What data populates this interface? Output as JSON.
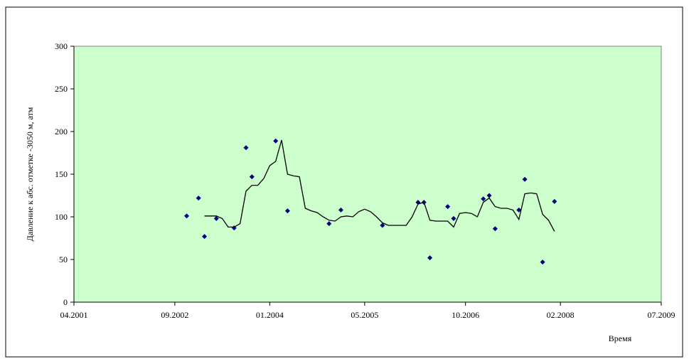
{
  "chart_data": {
    "type": "scatter",
    "ylabel": "Давление к абс. отметке -3050 м, атм",
    "xlabel": "Время",
    "xlim": [
      "2001-04",
      "2009-07"
    ],
    "xticks": [
      {
        "value": "2001-04",
        "label": "04.2001"
      },
      {
        "value": "2002-09",
        "label": "09.2002"
      },
      {
        "value": "2004-01",
        "label": "01.2004"
      },
      {
        "value": "2005-05",
        "label": "05.2005"
      },
      {
        "value": "2006-10",
        "label": "10.2006"
      },
      {
        "value": "2008-02",
        "label": "02.2008"
      },
      {
        "value": "2009-07",
        "label": "07.2009"
      }
    ],
    "ylim": [
      0,
      300
    ],
    "yticks": [
      0,
      50,
      100,
      150,
      200,
      250,
      300
    ],
    "background": "#ccffcc",
    "series": [
      {
        "type": "scatter",
        "color": "#000080",
        "x": [
          "2002-11",
          "2003-01",
          "2003-02",
          "2003-04",
          "2003-07",
          "2003-09",
          "2003-10",
          "2004-02",
          "2004-04",
          "2004-11",
          "2005-01",
          "2005-08",
          "2006-02",
          "2006-03",
          "2006-04",
          "2006-07",
          "2006-08",
          "2007-01",
          "2007-02",
          "2007-03",
          "2007-07",
          "2007-08",
          "2007-11",
          "2008-01"
        ],
        "values": [
          101,
          122,
          77,
          98,
          87,
          181,
          147,
          189,
          107,
          92,
          108,
          90,
          117,
          117,
          52,
          112,
          98,
          121,
          125,
          86,
          108,
          144,
          47,
          118
        ]
      },
      {
        "type": "line",
        "color": "#000000",
        "x": [
          "2003-02",
          "2003-04",
          "2003-05",
          "2003-06",
          "2003-07",
          "2003-08",
          "2003-09",
          "2003-10",
          "2003-11",
          "2003-12",
          "2004-01",
          "2004-02",
          "2004-03",
          "2004-04",
          "2004-05",
          "2004-06",
          "2004-07",
          "2004-08",
          "2004-09",
          "2004-10",
          "2004-11",
          "2004-12",
          "2005-01",
          "2005-02",
          "2005-03",
          "2005-04",
          "2005-05",
          "2005-06",
          "2005-07",
          "2005-08",
          "2005-09",
          "2005-10",
          "2005-11",
          "2005-12",
          "2006-01",
          "2006-02",
          "2006-03",
          "2006-04",
          "2006-05",
          "2006-06",
          "2006-07",
          "2006-08",
          "2006-09",
          "2006-10",
          "2006-11",
          "2006-12",
          "2007-01",
          "2007-02",
          "2007-03",
          "2007-04",
          "2007-05",
          "2007-06",
          "2007-07",
          "2007-08",
          "2007-09",
          "2007-10",
          "2007-11",
          "2007-12",
          "2008-01"
        ],
        "values": [
          101,
          101,
          98,
          88,
          88,
          92,
          130,
          137,
          137,
          145,
          160,
          165,
          190,
          150,
          148,
          147,
          110,
          107,
          105,
          100,
          96,
          95,
          100,
          101,
          100,
          106,
          109,
          106,
          100,
          93,
          90,
          90,
          90,
          90,
          100,
          115,
          117,
          96,
          95,
          95,
          95,
          88,
          104,
          105,
          104,
          100,
          117,
          122,
          112,
          110,
          110,
          108,
          97,
          127,
          128,
          127,
          103,
          96,
          83
        ]
      }
    ]
  }
}
